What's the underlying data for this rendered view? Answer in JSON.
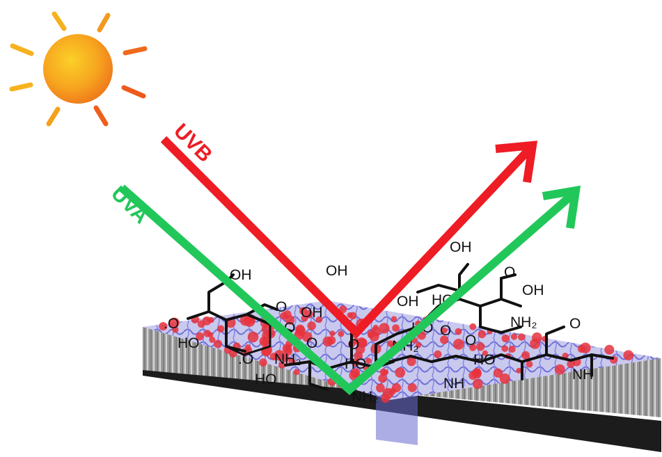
{
  "labels": {
    "uvb": "UVB",
    "uva": "UVA"
  },
  "chemistry": {
    "oh_1": "OH",
    "oh_2": "OH",
    "oh_3": "OH",
    "oh_4": "OH",
    "oh_5": "OH",
    "oh_6": "OH",
    "o_1": ".O",
    "o_2": "O",
    "o_3": "O",
    "o_4": "O",
    "o_5": "O",
    "o_6": "O",
    "o_7": ".O",
    "o_8": "O",
    "o_9": "O",
    "o_10": "O",
    "ho_1": "HO",
    "ho_2": "HO",
    "ho_3": "HO",
    "ho_4": "HO",
    "ho_5": "HO",
    "ho_6": "HO",
    "nh2_1": "NH₂",
    "nh2_2": "NH₂",
    "nh2_3": "NH₂",
    "nh2_4": "NH₂",
    "nh_1": "NH",
    "nh_2": "NH"
  },
  "colors": {
    "sun_inner": "#f8c21c",
    "sun_outer": "#f08a1c",
    "uvb": "#ee1c24",
    "uva": "#22c75a",
    "coating_blue": "#8f8fe8",
    "coating_red": "#e8323c",
    "substrate": "#9a9a9a"
  },
  "icons": {
    "sun": "sun-icon"
  }
}
